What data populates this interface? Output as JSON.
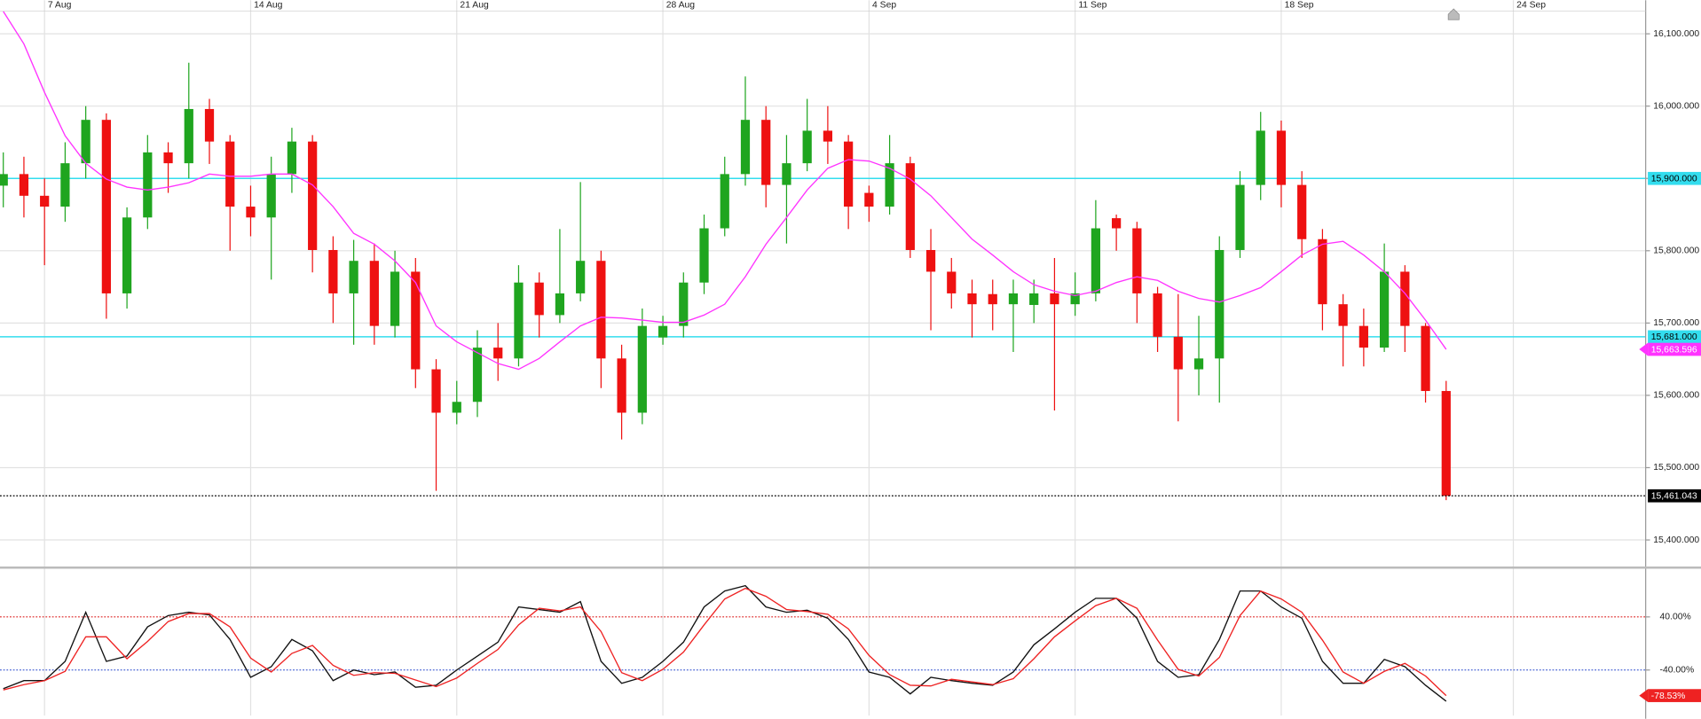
{
  "chart_data": [
    {
      "type": "candlestick",
      "xlim": [
        -1.08,
        38.84
      ],
      "xticks": [
        {
          "value": 0,
          "label": "7 Aug"
        },
        {
          "value": 5,
          "label": "14 Aug"
        },
        {
          "value": 10,
          "label": "21 Aug"
        },
        {
          "value": 15,
          "label": "28 Aug"
        },
        {
          "value": 20,
          "label": "4 Sep"
        },
        {
          "value": 25,
          "label": "11 Sep"
        },
        {
          "value": 30,
          "label": "18 Sep"
        },
        {
          "value": 35.63,
          "label": "24 Sep"
        }
      ],
      "ylim": [
        15364,
        16131.5
      ],
      "yticks": [
        {
          "value": 15400,
          "label": "15,400.000"
        },
        {
          "value": 15500,
          "label": "15,500.000"
        },
        {
          "value": 15600,
          "label": "15,600.000"
        },
        {
          "value": 15700,
          "label": "15,700.000"
        },
        {
          "value": 15800,
          "label": "15,800.000"
        },
        {
          "value": 15900,
          "label": "15,900.000"
        },
        {
          "value": 16000,
          "label": "16,000.000"
        },
        {
          "value": 16100,
          "label": "16,100.000"
        }
      ],
      "grid": true,
      "up_color": "#1fa51f",
      "down_color": "#ee1111",
      "x": [
        -1,
        -0.5,
        0,
        0.5,
        1,
        1.5,
        2,
        2.5,
        3,
        3.5,
        4,
        4.5,
        5,
        5.5,
        6,
        6.5,
        7,
        7.5,
        8,
        8.5,
        9,
        9.5,
        10,
        10.5,
        11,
        11.5,
        12,
        12.5,
        13,
        13.5,
        14,
        14.5,
        15,
        15.5,
        16,
        16.5,
        17,
        17.5,
        18,
        18.5,
        19,
        19.5,
        20,
        20.5,
        21,
        21.5,
        22,
        22.5,
        23,
        23.5,
        24,
        24.5,
        25,
        25.5,
        26,
        26.5,
        27,
        27.5,
        28,
        28.5,
        29,
        29.5,
        30,
        30.5,
        31,
        31.5,
        32,
        32.5,
        33,
        33.5,
        34
      ],
      "open": [
        15890,
        15906,
        15876,
        15861,
        15921,
        15981,
        15741,
        15846,
        15936,
        15921,
        15996,
        15951,
        15861,
        15846,
        15906,
        15951,
        15801,
        15741,
        15786,
        15696,
        15771,
        15636,
        15576,
        15591,
        15666,
        15651,
        15756,
        15711,
        15741,
        15786,
        15651,
        15576,
        15680,
        15696,
        15756,
        15831,
        15906,
        15981,
        15891,
        15921,
        15966,
        15951,
        15880,
        15861,
        15921,
        15801,
        15771,
        15741,
        15740,
        15726,
        15725,
        15741,
        15726,
        15741,
        15845,
        15831,
        15741,
        15681,
        15636,
        15651,
        15801,
        15891,
        15966,
        15891,
        15816,
        15726,
        15696,
        15666,
        15771,
        15696,
        15606
      ],
      "high": [
        15936,
        15930,
        15900,
        15950,
        16000,
        15990,
        15860,
        15960,
        15950,
        16060,
        16010,
        15960,
        15890,
        15930,
        15970,
        15960,
        15820,
        15815,
        15810,
        15800,
        15790,
        15650,
        15620,
        15690,
        15700,
        15780,
        15770,
        15830,
        15895,
        15800,
        15670,
        15720,
        15710,
        15770,
        15850,
        15930,
        16041,
        16000,
        15960,
        16010,
        16000,
        15960,
        15890,
        15960,
        15930,
        15830,
        15790,
        15760,
        15760,
        15760,
        15760,
        15790,
        15770,
        15870,
        15850,
        15840,
        15750,
        15740,
        15710,
        15820,
        15910,
        15992,
        15980,
        15910,
        15830,
        15740,
        15720,
        15810,
        15780,
        15700,
        15620
      ],
      "low": [
        15860,
        15846,
        15780,
        15840,
        15900,
        15706,
        15720,
        15830,
        15880,
        15900,
        15920,
        15800,
        15820,
        15760,
        15880,
        15770,
        15700,
        15670,
        15670,
        15680,
        15610,
        15468,
        15560,
        15570,
        15620,
        15640,
        15680,
        15700,
        15730,
        15610,
        15539,
        15560,
        15670,
        15680,
        15740,
        15820,
        15890,
        15860,
        15810,
        15910,
        15920,
        15830,
        15840,
        15850,
        15790,
        15690,
        15720,
        15680,
        15690,
        15660,
        15700,
        15579,
        15710,
        15730,
        15800,
        15700,
        15660,
        15564,
        15600,
        15590,
        15790,
        15870,
        15860,
        15790,
        15690,
        15640,
        15640,
        15660,
        15660,
        15590,
        15455
      ],
      "close": [
        15906,
        15876,
        15861,
        15921,
        15981,
        15741,
        15846,
        15936,
        15921,
        15996,
        15951,
        15861,
        15846,
        15906,
        15951,
        15801,
        15741,
        15786,
        15696,
        15771,
        15636,
        15576,
        15591,
        15666,
        15651,
        15756,
        15711,
        15741,
        15786,
        15651,
        15576,
        15696,
        15696,
        15756,
        15831,
        15906,
        15981,
        15891,
        15921,
        15966,
        15951,
        15861,
        15861,
        15921,
        15801,
        15771,
        15741,
        15726,
        15726,
        15741,
        15741,
        15726,
        15741,
        15831,
        15831,
        15741,
        15681,
        15636,
        15651,
        15801,
        15891,
        15966,
        15891,
        15816,
        15726,
        15696,
        15666,
        15771,
        15696,
        15606,
        15461.043
      ],
      "overlays": [
        {
          "color": "#ff33ff",
          "tag": "15,663.596",
          "values": [
            16131,
            16086,
            16019,
            15959,
            15921,
            15899,
            15888,
            15884,
            15888,
            15894,
            15906,
            15903,
            15903,
            15906,
            15906,
            15891,
            15861,
            15824,
            15809,
            15786,
            15756,
            15696,
            15674,
            15659,
            15644,
            15636,
            15651,
            15674,
            15696,
            15708,
            15707,
            15704,
            15701,
            15701,
            15711,
            15726,
            15764,
            15809,
            15846,
            15884,
            15914,
            15926,
            15924,
            15914,
            15899,
            15876,
            15846,
            15816,
            15794,
            15771,
            15753,
            15744,
            15738,
            15744,
            15756,
            15764,
            15759,
            15744,
            15734,
            15729,
            15738,
            15749,
            15771,
            15794,
            15809,
            15813,
            15794,
            15771,
            15741,
            15704,
            15663.596
          ]
        }
      ],
      "hlines": [
        {
          "value": 15900,
          "label": "15,900.000",
          "color": "#33ddee"
        },
        {
          "value": 15681,
          "label": "15,681.000",
          "color": "#33ddee"
        }
      ],
      "price_line": {
        "value": 15461.043,
        "label": "15,461.043",
        "color": "#000000"
      }
    },
    {
      "type": "line",
      "xlim": [
        -1.08,
        38.84
      ],
      "x": [
        -1,
        -0.5,
        0,
        0.5,
        1,
        1.5,
        2,
        2.5,
        3,
        3.5,
        4,
        4.5,
        5,
        5.5,
        6,
        6.5,
        7,
        7.5,
        8,
        8.5,
        9,
        9.5,
        10,
        10.5,
        11,
        11.5,
        12,
        12.5,
        13,
        13.5,
        14,
        14.5,
        15,
        15.5,
        16,
        16.5,
        17,
        17.5,
        18,
        18.5,
        19,
        19.5,
        20,
        20.5,
        21,
        21.5,
        22,
        22.5,
        23,
        23.5,
        24,
        24.5,
        25,
        25.5,
        26,
        26.5,
        27,
        27.5,
        28,
        28.5,
        29,
        29.5,
        30,
        30.5,
        31,
        31.5,
        32,
        32.5,
        33,
        33.5,
        34
      ],
      "ylim": [
        -108.6,
        111.8
      ],
      "yticks": [
        {
          "value": 40,
          "label": "40.00%"
        },
        {
          "value": -40,
          "label": "-40.00%"
        }
      ],
      "level_colors": [
        "#dd2222",
        "#2244cc"
      ],
      "series": [
        {
          "color": "#111111",
          "values": [
            -68,
            -56,
            -56,
            -27,
            47,
            -27,
            -19,
            25,
            42,
            47,
            43,
            6,
            -51,
            -35,
            6,
            -11,
            -56,
            -40,
            -47,
            -43,
            -66,
            -63,
            -40,
            -19,
            2,
            55,
            51,
            47,
            63,
            -27,
            -60,
            -51,
            -27,
            2,
            55,
            79,
            87,
            55,
            47,
            50,
            38,
            6,
            -43,
            -51,
            -76,
            -51,
            -56,
            -60,
            -63,
            -43,
            -2,
            22,
            47,
            68,
            68,
            38,
            -27,
            -51,
            -47,
            6,
            79,
            79,
            55,
            38,
            -27,
            -60,
            -60,
            -24,
            -35,
            -63,
            -87
          ]
        },
        {
          "color": "#ee2222",
          "tag": "-78.53%",
          "values": [
            -70,
            -62,
            -56,
            -42,
            10,
            10,
            -23,
            3,
            33,
            45,
            45,
            25,
            -22,
            -43,
            -15,
            -3,
            -33,
            -48,
            -44,
            -45,
            -55,
            -65,
            -52,
            -30,
            -9,
            28,
            53,
            49,
            55,
            18,
            -44,
            -56,
            -39,
            -13,
            28,
            67,
            83,
            71,
            51,
            48,
            44,
            22,
            -18,
            -47,
            -63,
            -64,
            -54,
            -58,
            -62,
            -53,
            -23,
            10,
            34,
            57,
            68,
            53,
            5,
            -39,
            -49,
            -21,
            42,
            79,
            67,
            47,
            5,
            -43,
            -60,
            -42,
            -30,
            -49,
            -78.53
          ]
        }
      ]
    }
  ]
}
